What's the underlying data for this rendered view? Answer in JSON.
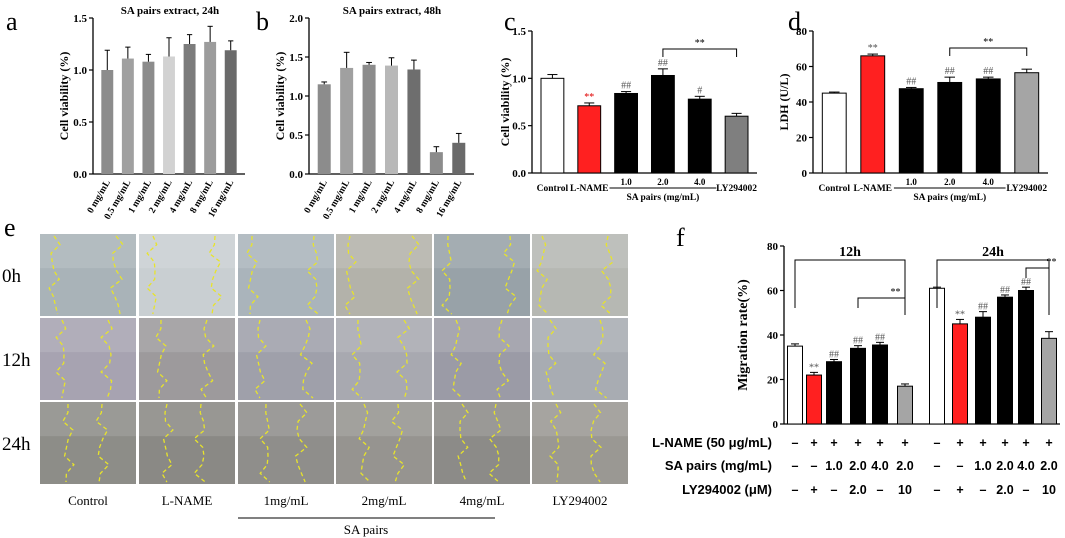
{
  "panel_letters": [
    "a",
    "b",
    "c",
    "d",
    "e",
    "f"
  ],
  "chart_data": [
    {
      "id": "a",
      "type": "bar",
      "title": "SA pairs extract,  24h",
      "ylabel": "Cell viability (%)",
      "ylim": [
        0,
        1.5
      ],
      "yticks": [
        "0.0",
        "0.5",
        "1.0",
        "1.5"
      ],
      "categories": [
        "0 mg/mL",
        "0.5 mg/mL",
        "1 mg/mL",
        "2 mg/mL",
        "4 mg/mL",
        "8 mg/mL",
        "16 mg/mL"
      ],
      "values": [
        1.0,
        1.11,
        1.08,
        1.13,
        1.25,
        1.27,
        1.19
      ],
      "errors": [
        0.19,
        0.11,
        0.07,
        0.18,
        0.09,
        0.15,
        0.09
      ],
      "colors": [
        "#8c8c8c",
        "#a0a0a0",
        "#8c8c8c",
        "#d2d2d2",
        "#7c7c7c",
        "#9c9c9c",
        "#6a6a6a"
      ]
    },
    {
      "id": "b",
      "type": "bar",
      "title": "SA pairs extract,  48h",
      "ylabel": "Cell viability (%)",
      "ylim": [
        0,
        2.0
      ],
      "yticks": [
        "0.0",
        "0.5",
        "1.0",
        "1.5",
        "2.0"
      ],
      "categories": [
        "0 mg/mL",
        "0.5 mg/mL",
        "1 mg/mL",
        "2 mg/mL",
        "4 mg/mL",
        "8 mg/mL",
        "16 mg/mL"
      ],
      "values": [
        1.15,
        1.36,
        1.4,
        1.39,
        1.34,
        0.28,
        0.4
      ],
      "errors": [
        0.03,
        0.2,
        0.03,
        0.1,
        0.12,
        0.07,
        0.12
      ],
      "colors": [
        "#8c8c8c",
        "#a0a0a0",
        "#8c8c8c",
        "#b8b8b8",
        "#6e6e6e",
        "#8c8c8c",
        "#6a6a6a"
      ]
    },
    {
      "id": "c",
      "type": "bar",
      "ylabel": "Cell viability (%)",
      "ylim": [
        0,
        1.5
      ],
      "yticks": [
        "0.0",
        "0.5",
        "1.0",
        "1.5"
      ],
      "categories": [
        "Control",
        "L-NAME",
        "1.0",
        "2.0",
        "4.0",
        "LY294002"
      ],
      "group_label": "SA pairs (mg/mL)",
      "values": [
        1.0,
        0.71,
        0.84,
        1.03,
        0.78,
        0.6
      ],
      "errors": [
        0.04,
        0.03,
        0.02,
        0.07,
        0.03,
        0.03
      ],
      "colors": [
        "#ffffff",
        "#ff2020",
        "#000000",
        "#000000",
        "#000000",
        "#7f7f7f"
      ],
      "annotations": [
        "",
        "**",
        "##",
        "##",
        "#",
        ""
      ],
      "annotation_colors": [
        "#000000",
        "#e00000",
        "#555555",
        "#555555",
        "#555555",
        "#000000"
      ],
      "bracket": {
        "from": 3,
        "to": 5,
        "label": "**"
      }
    },
    {
      "id": "d",
      "type": "bar",
      "ylabel": "LDH (U/L)",
      "ylim": [
        0,
        80
      ],
      "yticks": [
        "0",
        "20",
        "40",
        "60",
        "80"
      ],
      "categories": [
        "Control",
        "L-NAME",
        "1.0",
        "2.0",
        "4.0",
        "LY294002"
      ],
      "group_label": "SA pairs (mg/mL)",
      "values": [
        45,
        66,
        47.5,
        51,
        53,
        56.5
      ],
      "errors": [
        0.6,
        1.0,
        0.7,
        3.0,
        1.0,
        2.0
      ],
      "colors": [
        "#ffffff",
        "#ff2020",
        "#000000",
        "#000000",
        "#000000",
        "#a5a5a5"
      ],
      "annotations": [
        "",
        "**",
        "##",
        "##",
        "##",
        ""
      ],
      "annotation_colors": [
        "#000000",
        "#555555",
        "#555555",
        "#555555",
        "#555555",
        "#000000"
      ],
      "bracket": {
        "from": 3,
        "to": 5,
        "label": "**"
      }
    },
    {
      "id": "f",
      "type": "bar",
      "ylabel": "Migration rate(%)",
      "ylim": [
        0,
        80
      ],
      "yticks": [
        "0",
        "20",
        "40",
        "60",
        "80"
      ],
      "groups": [
        {
          "name": "12h",
          "values": [
            35,
            22,
            28,
            34,
            35.5,
            17
          ],
          "errors": [
            1.0,
            1.2,
            1.0,
            1.2,
            1.2,
            1.0
          ],
          "annotations": [
            "",
            "**",
            "##",
            "##",
            "##",
            ""
          ],
          "bracket": {
            "from": 3,
            "to": 5,
            "label": "**"
          }
        },
        {
          "name": "24h",
          "values": [
            61,
            45,
            48,
            57,
            60,
            38.5
          ],
          "errors": [
            0.5,
            2.0,
            2.5,
            1.0,
            1.5,
            3.0
          ],
          "annotations": [
            "",
            "**",
            "##",
            "##",
            "##",
            ""
          ],
          "bracket": {
            "from": 4,
            "to": 5,
            "label": "**"
          }
        }
      ],
      "colors": [
        "#ffffff",
        "#ff2020",
        "#000000",
        "#000000",
        "#000000",
        "#a5a5a5"
      ],
      "annotation_colors": [
        "#000000",
        "#555555",
        "#555555",
        "#555555",
        "#555555",
        "#000000"
      ],
      "conditions": [
        {
          "label": "L-NAME (50 μg/mL)",
          "values": [
            "–",
            "+",
            "+",
            "+",
            "+",
            "+",
            "–",
            "+",
            "+",
            "+",
            "+",
            "+"
          ]
        },
        {
          "label": "SA pairs (mg/mL)",
          "values": [
            "–",
            "–",
            "1.0",
            "2.0",
            "4.0",
            "2.0",
            "–",
            "–",
            "1.0",
            "2.0",
            "4.0",
            "2.0"
          ]
        },
        {
          "label": "LY294002 (μM)",
          "values": [
            "–",
            "+",
            "–",
            "2.0",
            "–",
            "10",
            "–",
            "+",
            "–",
            "2.0",
            "–",
            "10"
          ]
        }
      ]
    }
  ],
  "scratch_assay": {
    "row_labels": [
      "0h",
      "12h",
      "24h"
    ],
    "column_labels": [
      "Control",
      "L-NAME",
      "1mg/mL",
      "2mg/mL",
      "4mg/mL",
      "LY294002"
    ],
    "group_label": "SA pairs",
    "tile_colors": [
      [
        "#a9b3b8",
        "#c9cfd2",
        "#aab4bb",
        "#b3b2aa",
        "#98a2a8",
        "#b6b8b3"
      ],
      [
        "#a7a3b1",
        "#9d9a9c",
        "#9fa0aa",
        "#a8a9b0",
        "#9b9ba6",
        "#a8acb2"
      ],
      [
        "#8d8d88",
        "#8a8985",
        "#8f8e8b",
        "#969490",
        "#8c8b88",
        "#9a9893"
      ]
    ]
  }
}
